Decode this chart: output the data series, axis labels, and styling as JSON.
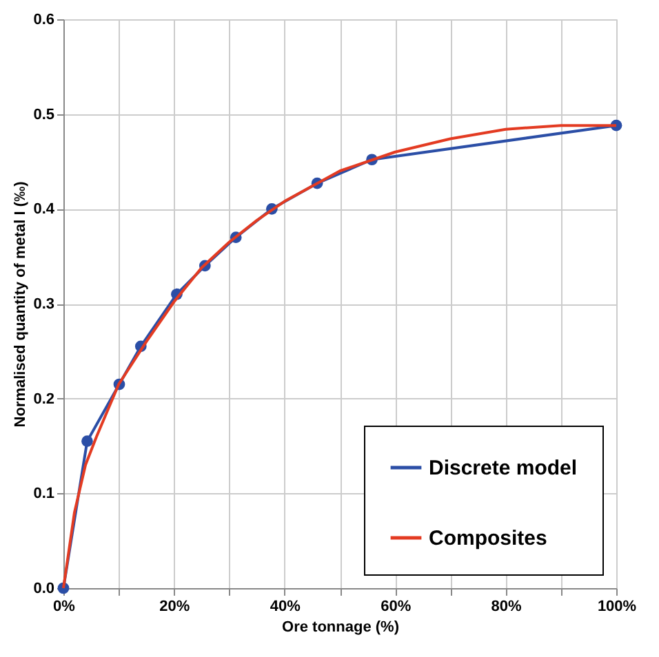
{
  "chart_data": {
    "type": "line",
    "xlabel": "Ore tonnage (%)",
    "ylabel": "Normalised quantity of metal I (‰)",
    "xlim": [
      0,
      100
    ],
    "ylim": [
      0,
      0.6
    ],
    "xticks": [
      {
        "value": 0,
        "label": "0%"
      },
      {
        "value": 10,
        "label": null
      },
      {
        "value": 20,
        "label": "20%"
      },
      {
        "value": 30,
        "label": null
      },
      {
        "value": 40,
        "label": "40%"
      },
      {
        "value": 50,
        "label": null
      },
      {
        "value": 60,
        "label": "60%"
      },
      {
        "value": 70,
        "label": null
      },
      {
        "value": 80,
        "label": "80%"
      },
      {
        "value": 90,
        "label": null
      },
      {
        "value": 100,
        "label": "100%"
      }
    ],
    "yticks": [
      {
        "value": 0,
        "label": "0.0"
      },
      {
        "value": 0.1,
        "label": "0.1"
      },
      {
        "value": 0.2,
        "label": "0.2"
      },
      {
        "value": 0.3,
        "label": "0.3"
      },
      {
        "value": 0.4,
        "label": "0.4"
      },
      {
        "value": 0.5,
        "label": "0.5"
      },
      {
        "value": 0.6,
        "label": "0.6"
      }
    ],
    "grid": true,
    "legend": "bottom right",
    "series": [
      {
        "name": "Discrete model",
        "color": "#2b4ea6",
        "marker": "circle",
        "x": [
          0,
          4.3,
          10.1,
          14,
          20.5,
          25.6,
          31.2,
          37.7,
          45.9,
          55.8,
          100
        ],
        "values": [
          0,
          0.155,
          0.215,
          0.255,
          0.31,
          0.34,
          0.37,
          0.4,
          0.427,
          0.452,
          0.488
        ]
      },
      {
        "name": "Composites",
        "color": "#e33b22",
        "marker": "none",
        "x": [
          0,
          1,
          2,
          4,
          6,
          10,
          15,
          20,
          25,
          30,
          35,
          40,
          50,
          60,
          70,
          80,
          90,
          100
        ],
        "values": [
          0,
          0.04,
          0.08,
          0.13,
          0.16,
          0.215,
          0.26,
          0.302,
          0.338,
          0.365,
          0.388,
          0.408,
          0.44,
          0.46,
          0.474,
          0.484,
          0.488,
          0.488
        ]
      }
    ]
  }
}
